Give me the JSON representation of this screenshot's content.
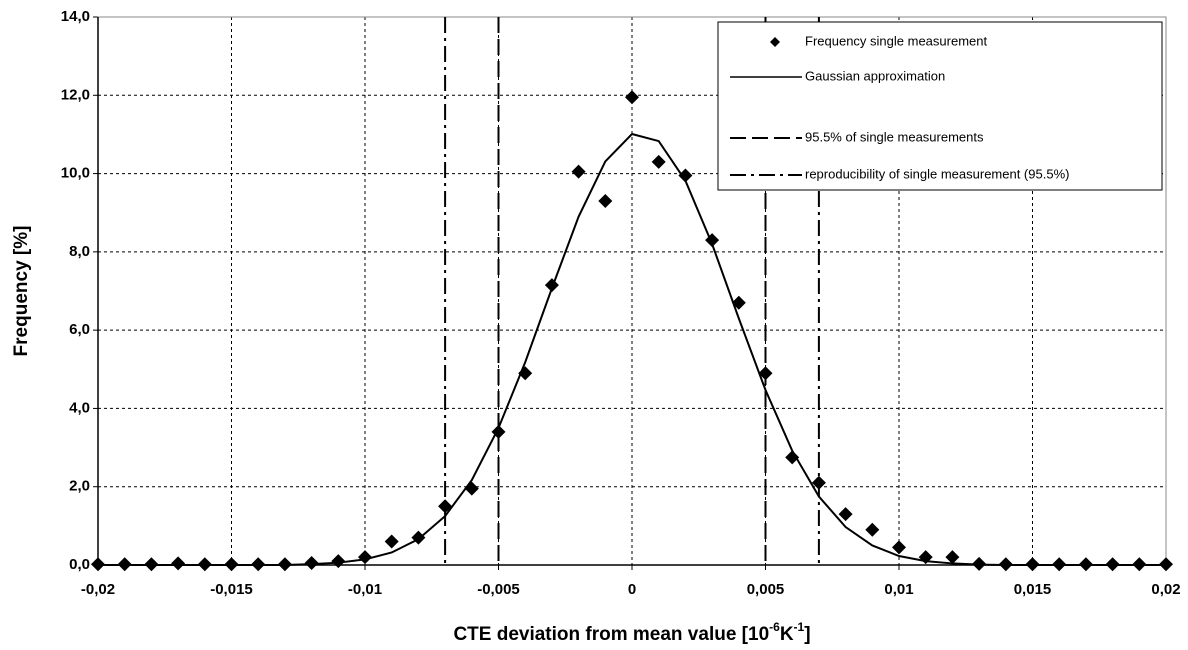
{
  "chart_data": {
    "type": "scatter",
    "ylabel": "Frequency [%]",
    "xlabel": [
      "CTE deviation from mean value [10",
      "-6",
      "K",
      "-1",
      "]"
    ],
    "xlim": [
      -0.02,
      0.02
    ],
    "ylim": [
      0,
      14
    ],
    "xticks": [
      {
        "value": -0.02,
        "label": "-0,02"
      },
      {
        "value": -0.015,
        "label": "-0,015"
      },
      {
        "value": -0.01,
        "label": "-0,01"
      },
      {
        "value": -0.005,
        "label": "-0,005"
      },
      0,
      {
        "value": 0.005,
        "label": "0,005"
      },
      {
        "value": 0.01,
        "label": "0,01"
      },
      {
        "value": 0.015,
        "label": "0,015"
      },
      {
        "value": 0.02,
        "label": "0,02"
      }
    ],
    "yticks": [
      {
        "value": 0,
        "label": "0,0"
      },
      {
        "value": 2,
        "label": "2,0"
      },
      {
        "value": 4,
        "label": "4,0"
      },
      {
        "value": 6,
        "label": "6,0"
      },
      {
        "value": 8,
        "label": "8,0"
      },
      {
        "value": 10,
        "label": "10,0"
      },
      {
        "value": 12,
        "label": "12,0"
      },
      {
        "value": 14,
        "label": "14,0"
      }
    ],
    "grid": true,
    "legend": "upper right",
    "series": [
      {
        "name": "Frequency single measurement",
        "type": "scatter",
        "color": "#000000",
        "x": [
          -0.02,
          -0.019,
          -0.018,
          -0.017,
          -0.016,
          -0.015,
          -0.014,
          -0.013,
          -0.012,
          -0.011,
          -0.01,
          -0.009,
          -0.008,
          -0.007,
          -0.006,
          -0.005,
          -0.004,
          -0.003,
          -0.002,
          -0.001,
          0,
          0.001,
          0.002,
          0.003,
          0.004,
          0.005,
          0.006,
          0.007,
          0.008,
          0.009,
          0.01,
          0.011,
          0.012,
          0.013,
          0.014,
          0.015,
          0.016,
          0.017,
          0.018,
          0.019,
          0.02
        ],
        "values": [
          0.02,
          0.02,
          0.02,
          0.04,
          0.02,
          0.02,
          0.02,
          0.02,
          0.05,
          0.1,
          0.2,
          0.6,
          0.7,
          1.5,
          1.95,
          3.4,
          4.9,
          7.15,
          10.05,
          9.3,
          11.95,
          10.3,
          9.95,
          8.3,
          6.7,
          4.9,
          2.75,
          2.1,
          1.3,
          0.9,
          0.45,
          0.2,
          0.2,
          0.03,
          0.02,
          0.02,
          0.02,
          0.02,
          0.02,
          0.02,
          0.02
        ]
      },
      {
        "name": "Gaussian approximation",
        "type": "line",
        "color": "#000000",
        "x": [
          -0.02,
          -0.019,
          -0.018,
          -0.017,
          -0.016,
          -0.015,
          -0.014,
          -0.013,
          -0.012,
          -0.011,
          -0.01,
          -0.009,
          -0.008,
          -0.007,
          -0.006,
          -0.005,
          -0.004,
          -0.003,
          -0.002,
          -0.001,
          0,
          0.001,
          0.002,
          0.003,
          0.004,
          0.005,
          0.006,
          0.007,
          0.008,
          0.009,
          0.01,
          0.011,
          0.012,
          0.013,
          0.014,
          0.015,
          0.016,
          0.017,
          0.018,
          0.019,
          0.02
        ],
        "values": [
          0,
          0,
          0,
          0,
          0,
          0,
          0,
          0,
          0.022,
          0.059,
          0.143,
          0.32,
          0.66,
          1.25,
          2.17,
          3.5,
          5.18,
          7.07,
          8.9,
          10.31,
          11.01,
          10.83,
          9.82,
          8.2,
          6.3,
          4.47,
          2.92,
          1.75,
          0.97,
          0.5,
          0.23,
          0.1,
          0.04,
          0.01,
          0,
          0,
          0,
          0,
          0,
          0,
          0
        ]
      }
    ],
    "vlines": [
      {
        "name": "95.5% of single measurements",
        "dash": "dashed",
        "color": "#000000",
        "x": [
          -0.005,
          0.005
        ]
      },
      {
        "name": "reproducibility of single measurement (95.5%)",
        "dash": "dashdot",
        "color": "#000000",
        "x": [
          -0.007,
          0.007
        ]
      }
    ]
  }
}
